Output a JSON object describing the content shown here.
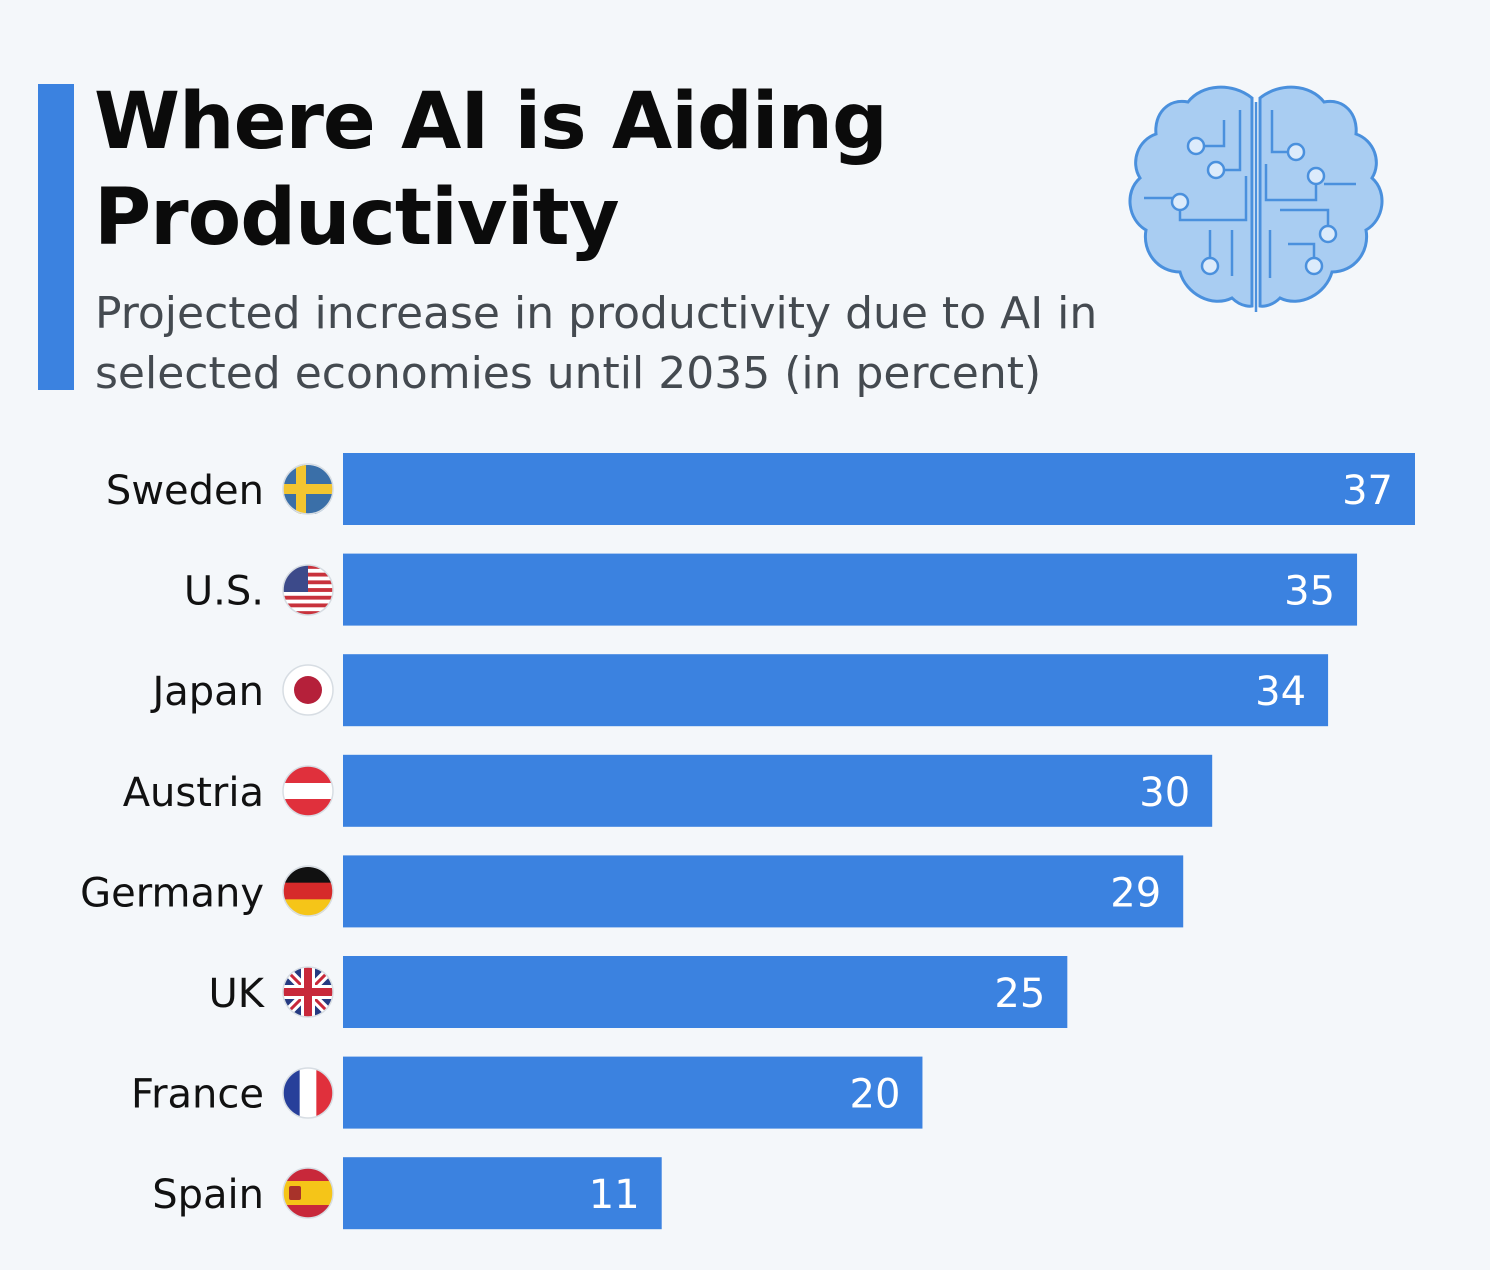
{
  "header": {
    "title": "Where AI is Aiding Productivity",
    "subtitle": "Projected increase in productivity due to AI in selected economies until 2035 (in percent)"
  },
  "brain_icon": "brain-circuit-icon",
  "colors": {
    "accent": "#3b82e0",
    "bar": "#3b82e0",
    "bar_label": "#ffffff",
    "brain_fill": "#a9cdf2",
    "brain_stroke": "#4a90dd"
  },
  "chart_data": {
    "type": "bar",
    "orientation": "horizontal",
    "categories": [
      "Sweden",
      "U.S.",
      "Japan",
      "Austria",
      "Germany",
      "UK",
      "France",
      "Spain"
    ],
    "flags": [
      "sweden-flag-icon",
      "us-flag-icon",
      "japan-flag-icon",
      "austria-flag-icon",
      "germany-flag-icon",
      "uk-flag-icon",
      "france-flag-icon",
      "spain-flag-icon"
    ],
    "values": [
      37,
      35,
      34,
      30,
      29,
      25,
      20,
      11
    ],
    "title": "Where AI is Aiding Productivity",
    "subtitle": "Projected increase in productivity due to AI in selected economies until 2035 (in percent)",
    "xlabel": "",
    "ylabel": "",
    "xlim": [
      0,
      37
    ],
    "grid": false,
    "legend": "none",
    "data_labels": "inside-end"
  }
}
